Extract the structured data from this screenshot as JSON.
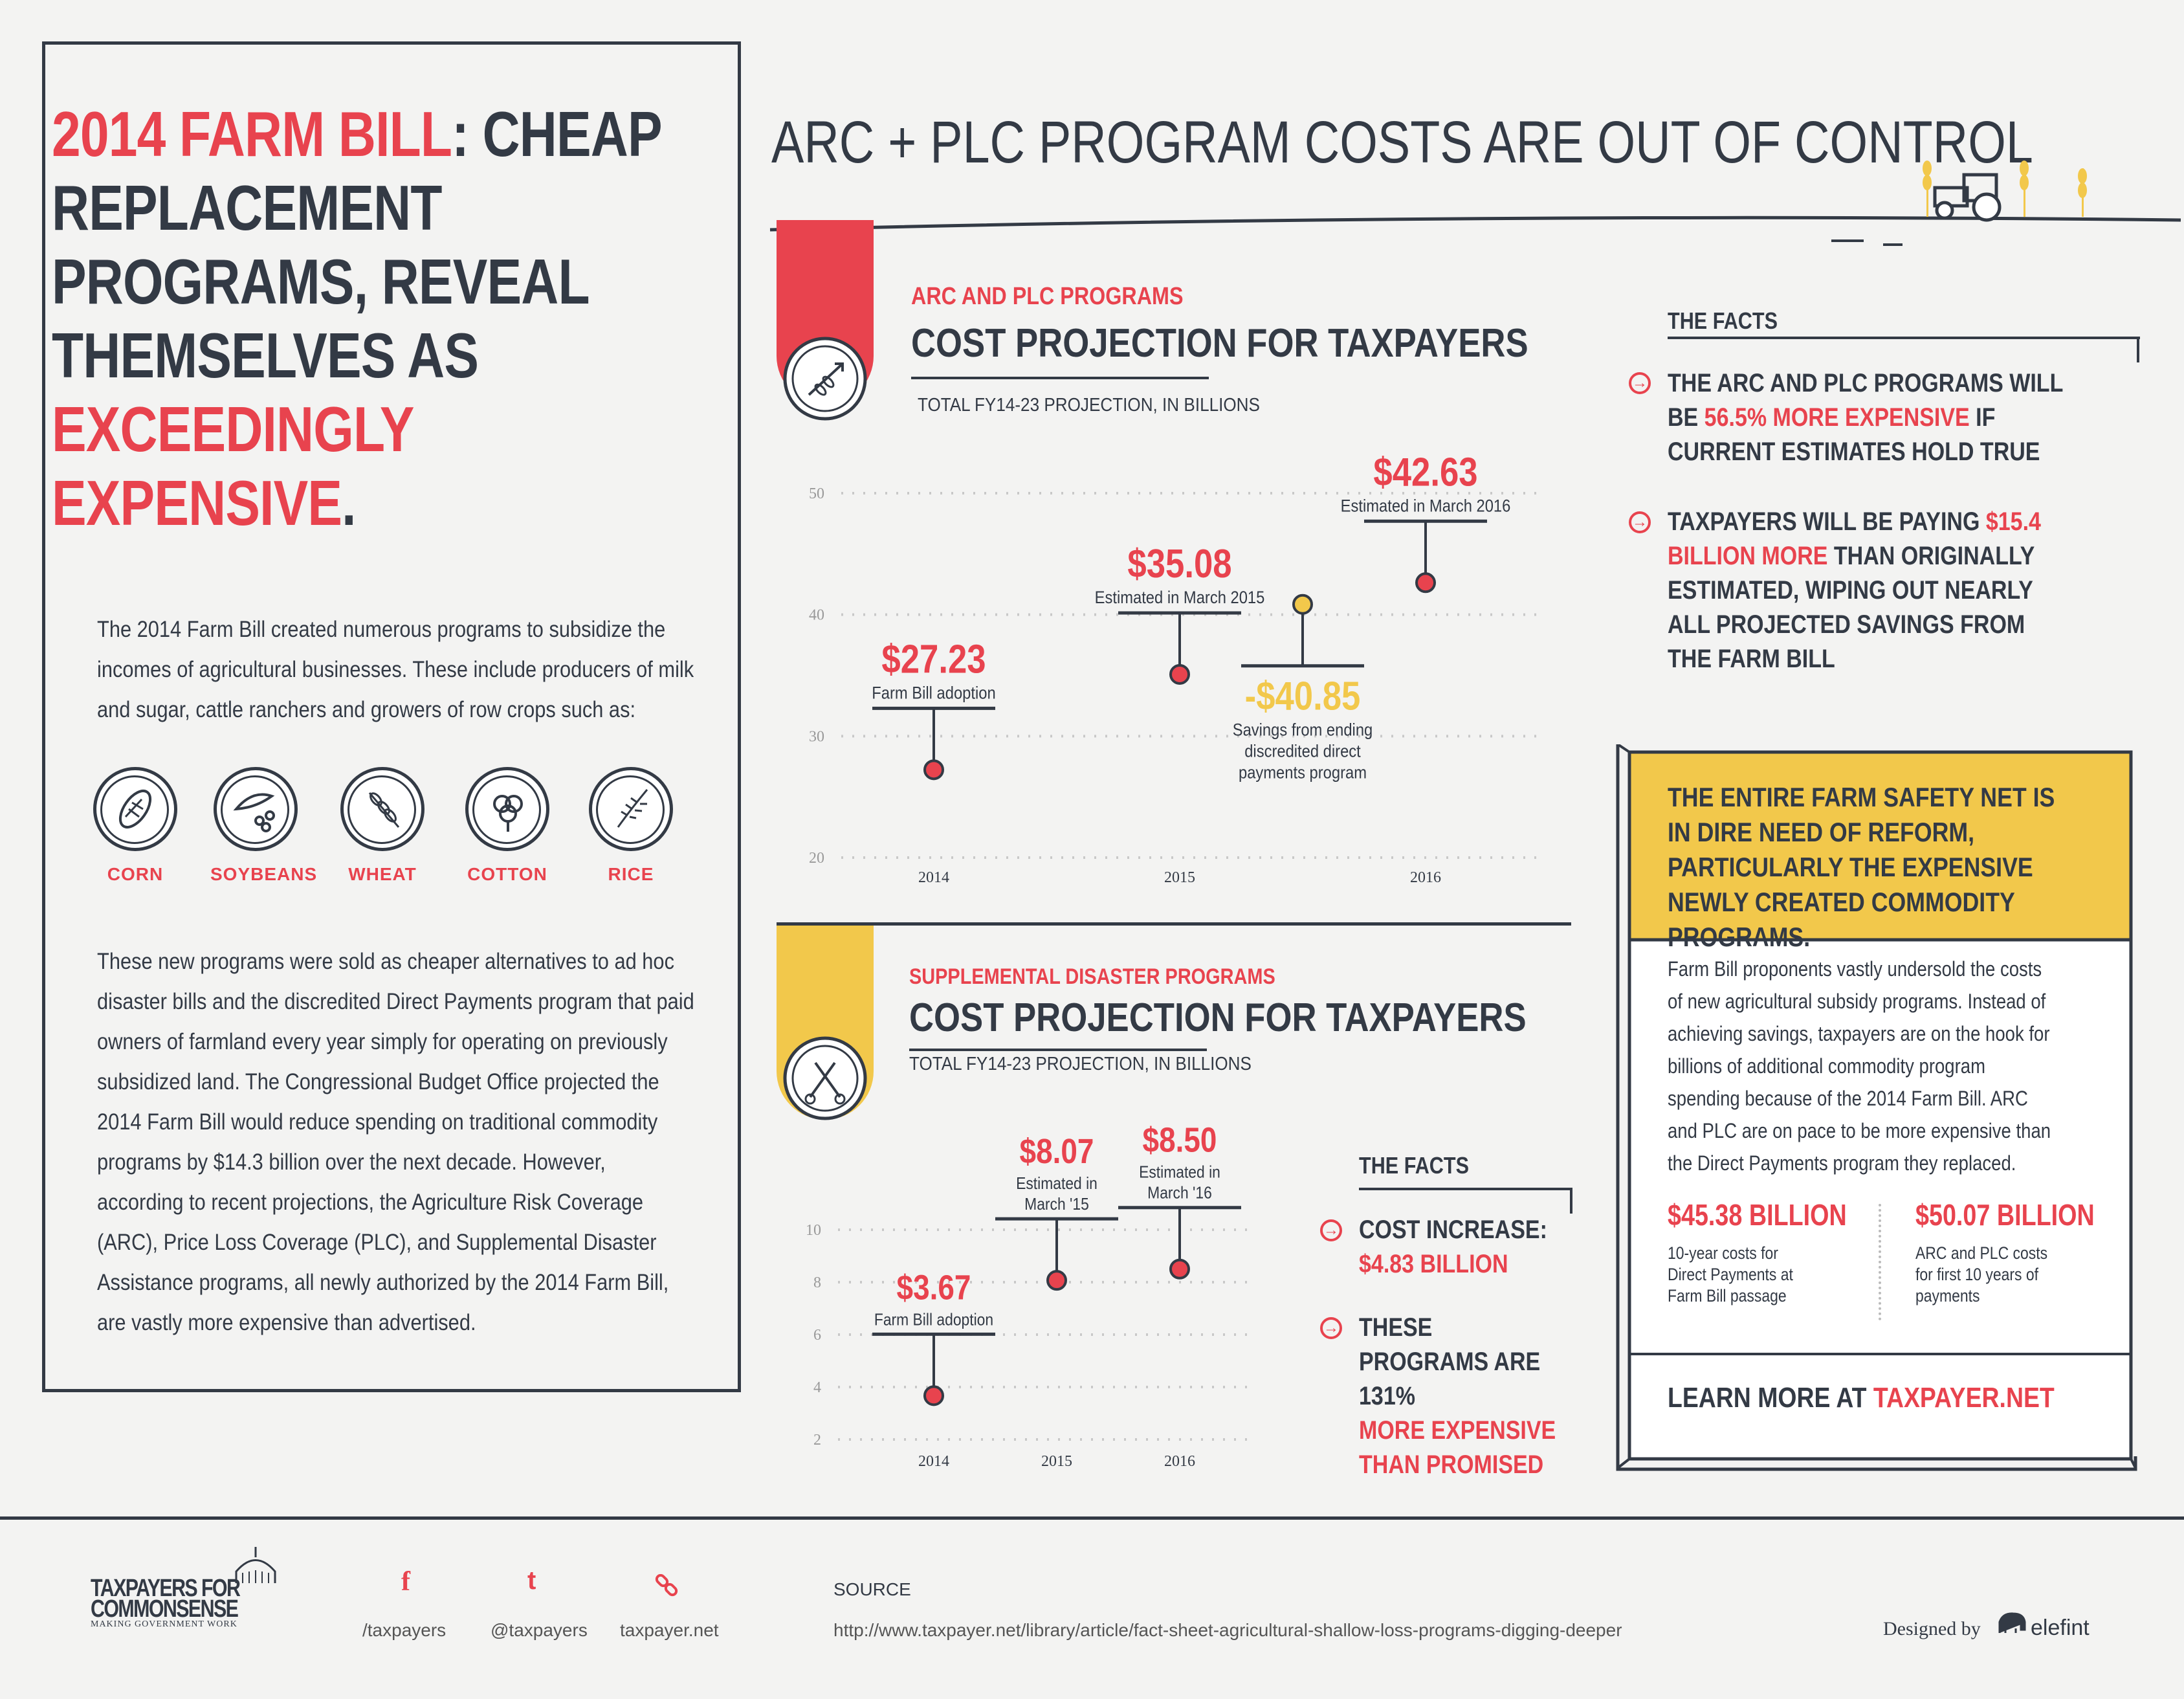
{
  "headline": {
    "part1_red": "2014 FARM BILL",
    "part1_colon": ":",
    "part2": "CHEAP REPLACEMENT PROGRAMS, REVEAL THEMSELVES AS",
    "part3_red": "EXCEEDINGLY EXPENSIVE",
    "part3_dot": "."
  },
  "intro": "The 2014 Farm Bill created numerous programs to subsidize the incomes of agricultural businesses. These include producers of milk and sugar, cattle ranchers and growers of row crops such as:",
  "crops": [
    {
      "label": "CORN",
      "icon": "corn-icon"
    },
    {
      "label": "SOYBEANS",
      "icon": "soybeans-icon"
    },
    {
      "label": "WHEAT",
      "icon": "wheat-icon"
    },
    {
      "label": "COTTON",
      "icon": "cotton-icon"
    },
    {
      "label": "RICE",
      "icon": "rice-icon"
    }
  ],
  "body": "These new programs were sold as cheaper alternatives to ad hoc disaster bills and the discredited Direct Payments program that paid owners of farmland every year simply for operating on previously subsidized land. The Congressional Budget Office projected the 2014 Farm Bill would reduce spending on traditional commodity programs by $14.3 billion over the next decade. However, according to recent projections, the Agriculture Risk Coverage (ARC), Price Loss Coverage (PLC), and Supplemental Disaster Assistance programs, all newly authorized by the 2014 Farm Bill, are vastly more expensive than advertised.",
  "main_title": "ARC + PLC PROGRAM COSTS ARE OUT OF CONTROL",
  "section1": {
    "kicker": "ARC AND PLC PROGRAMS",
    "title": "COST PROJECTION FOR TAXPAYERS",
    "subtitle": "TOTAL FY14-23 PROJECTION, IN BILLIONS",
    "icon": "arrow-wheat-icon"
  },
  "section2": {
    "kicker": "SUPPLEMENTAL DISASTER PROGRAMS",
    "title": "COST PROJECTION FOR TAXPAYERS",
    "subtitle": "TOTAL FY14-23 PROJECTION, IN BILLIONS",
    "icon": "scissors-icon"
  },
  "chart_data": [
    {
      "type": "scatter",
      "title": "COST PROJECTION FOR TAXPAYERS",
      "categories": [
        "2014",
        "2015",
        "2016"
      ],
      "ylim": [
        20,
        50
      ],
      "yticks": [
        50,
        40,
        30,
        20
      ],
      "points": [
        {
          "x": "2014",
          "y": 27.23,
          "label": "$27.23",
          "note": "Farm Bill adoption",
          "color": "#e8434e"
        },
        {
          "x": "2015",
          "y": 35.08,
          "label": "$35.08",
          "note": "Estimated in March 2015",
          "color": "#e8434e"
        },
        {
          "x": "2016",
          "y": 42.63,
          "label": "$42.63",
          "note": "Estimated in March 2016",
          "color": "#e8434e"
        },
        {
          "x": "2015.5",
          "y": 40.85,
          "label": "-$40.85",
          "note": "Savings from ending discredited direct payments program",
          "color": "#f2c84b"
        }
      ],
      "grid": true
    },
    {
      "type": "scatter",
      "title": "COST PROJECTION FOR TAXPAYERS",
      "categories": [
        "2014",
        "2015",
        "2016"
      ],
      "ylim": [
        2,
        10
      ],
      "yticks": [
        10,
        8,
        6,
        4,
        2
      ],
      "points": [
        {
          "x": "2014",
          "y": 3.67,
          "label": "$3.67",
          "note": "Farm Bill adoption",
          "color": "#e8434e"
        },
        {
          "x": "2015",
          "y": 8.07,
          "label": "$8.07",
          "note": "Estimated in March '15",
          "color": "#e8434e"
        },
        {
          "x": "2016",
          "y": 8.5,
          "label": "$8.50",
          "note": "Estimated in March '16",
          "color": "#e8434e"
        }
      ],
      "grid": true
    }
  ],
  "facts1": {
    "heading": "THE FACTS",
    "f1_a": "THE ARC AND PLC PROGRAMS WILL BE ",
    "f1_red": "56.5% MORE EXPENSIVE",
    "f1_b": " IF CURRENT ESTIMATES HOLD TRUE",
    "f2_a": "TAXPAYERS WILL BE PAYING ",
    "f2_red": "$15.4 BILLION MORE",
    "f2_b": " THAN ORIGINALLY ESTIMATED, WIPING OUT NEARLY ALL PROJECTED SAVINGS FROM THE FARM BILL"
  },
  "facts2": {
    "heading": "THE FACTS",
    "f1_a": "COST INCREASE:",
    "f1_red": "$4.83 BILLION",
    "f2_a": "THESE PROGRAMS ARE 131%",
    "f2_red": "MORE EXPENSIVE THAN PROMISED"
  },
  "callout": {
    "heading": "THE ENTIRE FARM SAFETY NET IS IN DIRE NEED OF REFORM, PARTICULARLY THE EXPENSIVE NEWLY CREATED COMMODITY PROGRAMS.",
    "text": "Farm Bill proponents vastly undersold the costs of new agricultural subsidy programs. Instead of achieving savings, taxpayers are on the hook for billions of additional commodity program spending because of the 2014 Farm Bill. ARC and PLC are on pace to be more expensive than the Direct Payments program they replaced.",
    "stat1_value": "$45.38 BILLION",
    "stat1_label": "10-year costs for Direct Payments at Farm Bill passage",
    "stat2_value": "$50.07 BILLION",
    "stat2_label": "ARC and PLC costs for first 10 years of payments",
    "learn_a": "LEARN MORE AT ",
    "learn_red": "TAXPAYER.NET"
  },
  "footer": {
    "logo_line1": "TAXPAYERS FOR",
    "logo_line2": "COMMONSENSE",
    "logo_tag": "MAKING GOVERNMENT WORK",
    "facebook": "/taxpayers",
    "twitter": "@taxpayers",
    "web": "taxpayer.net",
    "source_label": "SOURCE",
    "source_url": "http://www.taxpayer.net/library/article/fact-sheet-agricultural-shallow-loss-programs-digging-deeper",
    "designed_by": "Designed by",
    "designer": "elefint"
  },
  "colors": {
    "red": "#e8434e",
    "yellow": "#f2c84b",
    "navy": "#333a45",
    "bg": "#f3f3f2"
  }
}
